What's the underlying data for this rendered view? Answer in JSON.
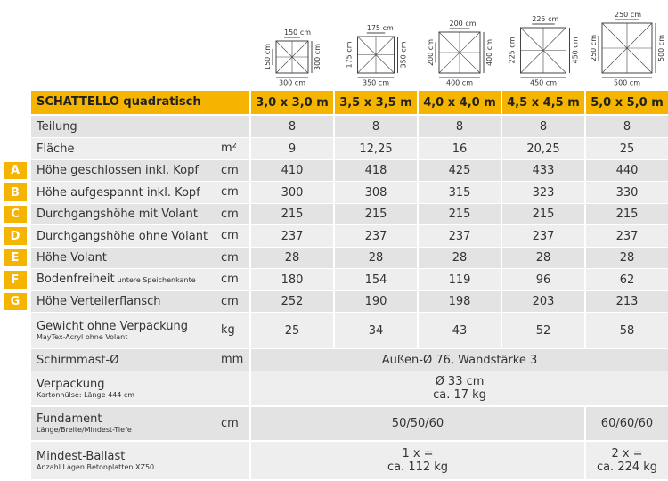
{
  "diagrams": [
    {
      "top": "150 cm",
      "left": "150 cm",
      "right": "300 cm",
      "bottom": "300 cm"
    },
    {
      "top": "175 cm",
      "left": "175 cm",
      "right": "350 cm",
      "bottom": "350 cm"
    },
    {
      "top": "200 cm",
      "left": "200 cm",
      "right": "400 cm",
      "bottom": "400 cm"
    },
    {
      "top": "225 cm",
      "left": "225 cm",
      "right": "450 cm",
      "bottom": "450 cm"
    },
    {
      "top": "250 cm",
      "left": "250 cm",
      "right": "500 cm",
      "bottom": "500 cm"
    }
  ],
  "header": {
    "title": "SCHATTELLO quadratisch",
    "sizes": [
      "3,0 x 3,0 m",
      "3,5 x 3,5 m",
      "4,0 x 4,0 m",
      "4,5 x 4,5 m",
      "5,0 x 5,0 m"
    ]
  },
  "rows": [
    {
      "label": "Teilung",
      "values": [
        8,
        8,
        8,
        8,
        8
      ]
    },
    {
      "label": "Fläche",
      "unit": "m²",
      "values": [
        9,
        "12,25",
        16,
        "20,25",
        25
      ]
    },
    {
      "letter": "A",
      "label": "Höhe geschlossen inkl. Kopf",
      "unit": "cm",
      "values": [
        410,
        418,
        425,
        433,
        440
      ]
    },
    {
      "letter": "B",
      "label": "Höhe aufgespannt inkl. Kopf",
      "unit": "cm",
      "values": [
        300,
        308,
        315,
        323,
        330
      ]
    },
    {
      "letter": "C",
      "label": "Durchgangshöhe mit Volant",
      "unit": "cm",
      "values": [
        215,
        215,
        215,
        215,
        215
      ]
    },
    {
      "letter": "D",
      "label": "Durchgangshöhe ohne Volant",
      "unit": "cm",
      "values": [
        237,
        237,
        237,
        237,
        237
      ]
    },
    {
      "letter": "E",
      "label": "Höhe Volant",
      "unit": "cm",
      "values": [
        28,
        28,
        28,
        28,
        28
      ]
    },
    {
      "letter": "F",
      "label": "Bodenfreiheit",
      "inline_sublabel": "untere Speichenkante",
      "unit": "cm",
      "values": [
        180,
        154,
        119,
        96,
        62
      ]
    },
    {
      "letter": "G",
      "label": "Höhe Verteilerflansch",
      "unit": "cm",
      "values": [
        252,
        190,
        198,
        203,
        213
      ]
    },
    {
      "label": "Gewicht ohne Verpackung",
      "sublabel": "MayTex-Acryl ohne Volant",
      "unit": "kg",
      "values": [
        25,
        34,
        43,
        52,
        58
      ]
    },
    {
      "label": "Schirmmast-Ø",
      "unit": "mm",
      "values": [
        [
          "Außen-Ø 76, Wandstärke 3"
        ]
      ]
    },
    {
      "label": "Verpackung",
      "sublabel": "Kartonhülse: Länge 444 cm",
      "values": [
        [
          "Ø 33 cm",
          "ca. 17 kg"
        ]
      ]
    },
    {
      "label": "Fundament",
      "sublabel": "Länge/Breite/Mindest-Tiefe",
      "unit": "cm",
      "values": [
        [
          "50/50/60"
        ],
        [
          "60/60/60"
        ]
      ]
    },
    {
      "label": "Mindest-Ballast",
      "sublabel": "Anzahl Lagen Betonplatten XZ50",
      "values": [
        [
          "1 x =",
          "ca. 112 kg"
        ],
        [
          "2 x =",
          "ca. 224 kg"
        ]
      ]
    }
  ]
}
